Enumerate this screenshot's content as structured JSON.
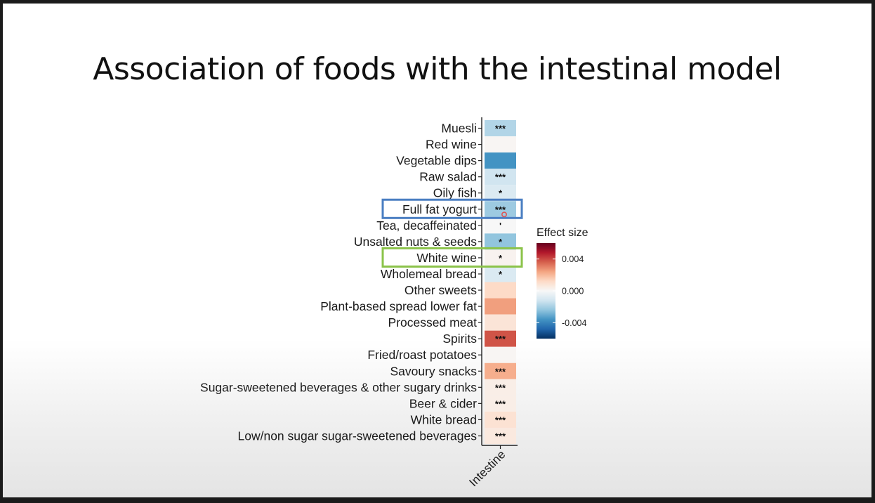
{
  "slide": {
    "title": "Association of foods with the intestinal model"
  },
  "chart_data": {
    "type": "heatmap",
    "title": "Association of foods with the intestinal model",
    "columns": [
      "Intestine"
    ],
    "rows": [
      {
        "label": "Muesli",
        "value": -0.0018,
        "sig": "***"
      },
      {
        "label": "Red wine",
        "value": 0.0001,
        "sig": ""
      },
      {
        "label": "Vegetable dips",
        "value": -0.0036,
        "sig": ""
      },
      {
        "label": "Raw salad",
        "value": -0.0012,
        "sig": "***"
      },
      {
        "label": "Oily fish",
        "value": -0.0009,
        "sig": "*"
      },
      {
        "label": "Full fat yogurt",
        "value": -0.0022,
        "sig": "***"
      },
      {
        "label": "Tea, decaffeinated",
        "value": 0.0,
        "sig": "'"
      },
      {
        "label": "Unsalted nuts & seeds",
        "value": -0.0024,
        "sig": "*"
      },
      {
        "label": "White wine",
        "value": 0.0002,
        "sig": "*"
      },
      {
        "label": "Wholemeal bread",
        "value": -0.0009,
        "sig": "*"
      },
      {
        "label": "Other sweets",
        "value": 0.0012,
        "sig": ""
      },
      {
        "label": "Plant-based spread lower fat",
        "value": 0.0025,
        "sig": ""
      },
      {
        "label": "Processed meat",
        "value": 0.0008,
        "sig": ""
      },
      {
        "label": "Spirits",
        "value": 0.0038,
        "sig": "***"
      },
      {
        "label": "Fried/roast potatoes",
        "value": 0.0001,
        "sig": ""
      },
      {
        "label": "Savoury snacks",
        "value": 0.0022,
        "sig": "***"
      },
      {
        "label": "Sugar-sweetened beverages & other sugary drinks",
        "value": 0.0004,
        "sig": "***"
      },
      {
        "label": "Beer & cider",
        "value": 0.0004,
        "sig": "***"
      },
      {
        "label": "White bread",
        "value": 0.0009,
        "sig": "***"
      },
      {
        "label": "Low/non sugar sugar-sweetened beverages",
        "value": 0.0006,
        "sig": "***"
      }
    ],
    "legend": {
      "title": "Effect size",
      "range": [
        -0.006,
        0.006
      ],
      "ticks": [
        {
          "label": "0.004",
          "value": 0.004
        },
        {
          "label": "0.000",
          "value": 0.0
        },
        {
          "label": "-0.004",
          "value": -0.004
        }
      ],
      "colors": [
        "#053061",
        "#2166ac",
        "#4393c3",
        "#92c5de",
        "#d1e5f0",
        "#f7f7f7",
        "#fddbc7",
        "#f4a582",
        "#d6604d",
        "#b2182b",
        "#67001f"
      ],
      "placement": "right"
    },
    "highlights": [
      {
        "row": "Full fat yogurt",
        "color": "#4a7ec2"
      },
      {
        "row": "White wine",
        "color": "#8bc34a"
      }
    ]
  }
}
